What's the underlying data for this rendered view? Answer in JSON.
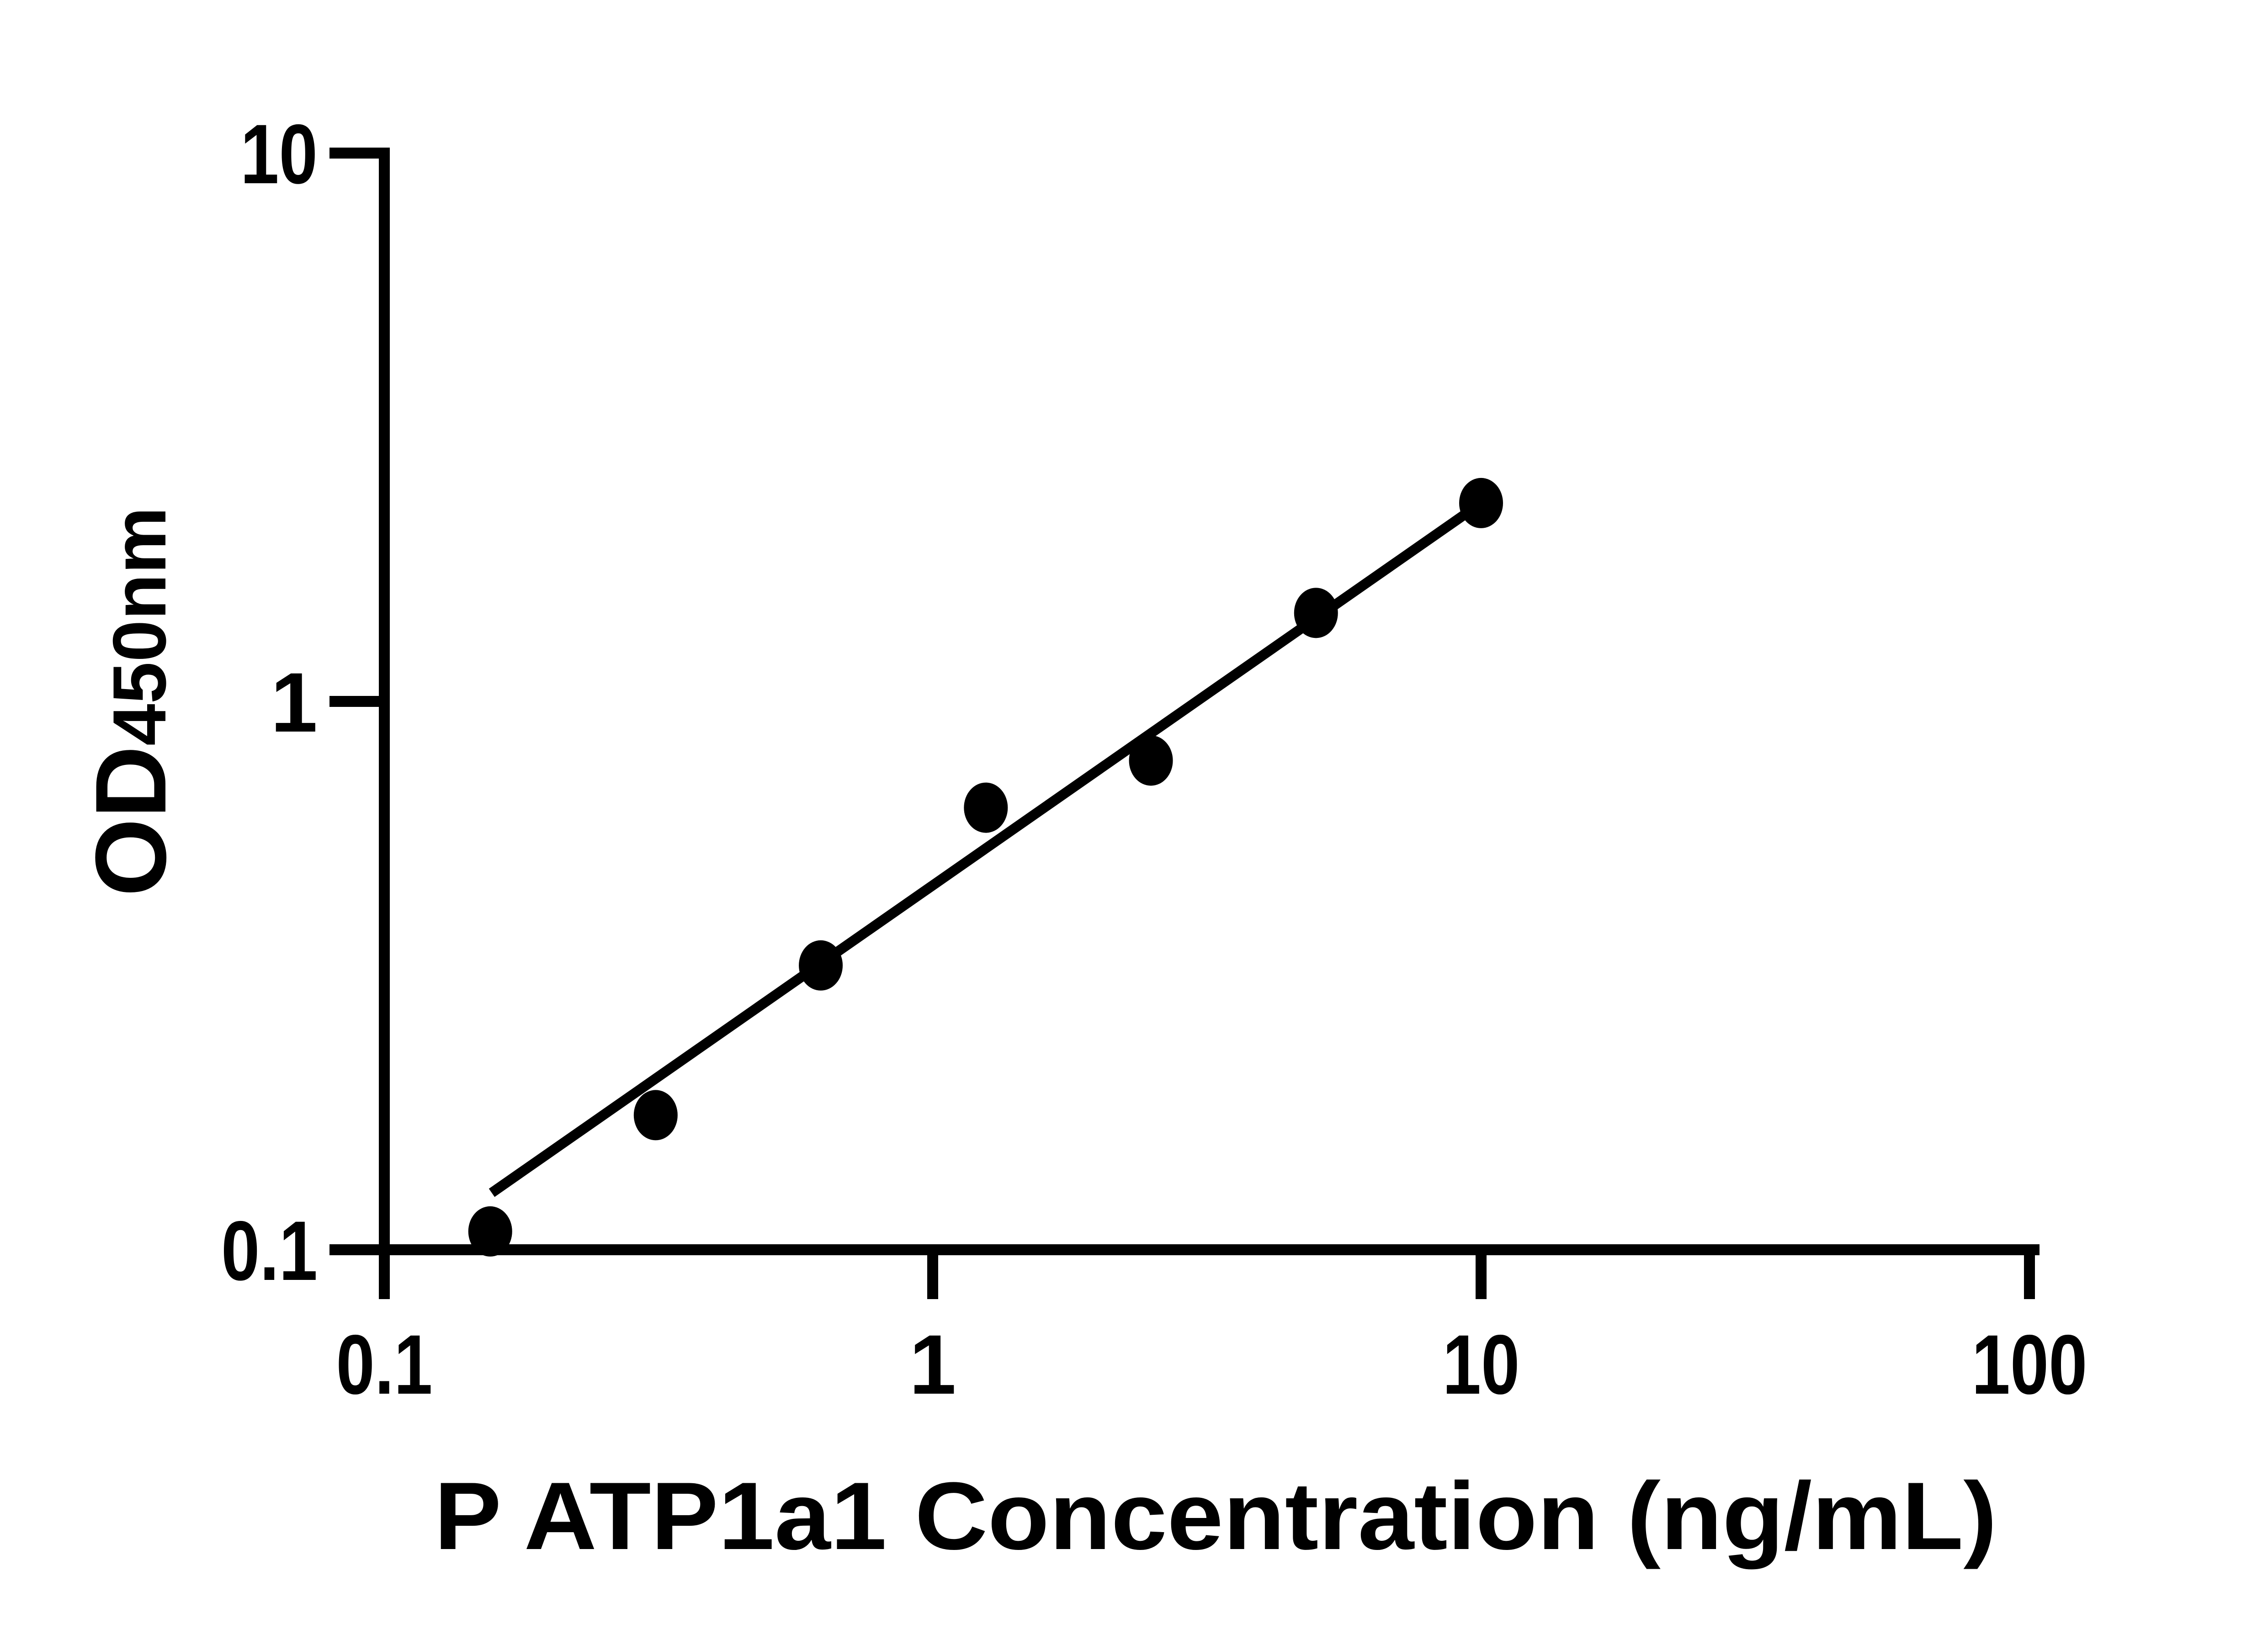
{
  "figure": {
    "background": "#ffffff"
  },
  "chart_data": {
    "type": "scatter",
    "title": "",
    "xlabel": "P ATP1a1 Concentration (ng/mL)",
    "ylabel": "OD450nm",
    "ylabel_main": "OD",
    "ylabel_sub": "450nm",
    "x_scale": "log",
    "y_scale": "log",
    "xlim": [
      0.1,
      100
    ],
    "ylim": [
      0.1,
      10
    ],
    "x_ticks": [
      "0.1",
      "1",
      "10",
      "100"
    ],
    "y_ticks": [
      "10",
      "1",
      "0.1"
    ],
    "grid": false,
    "legend": false,
    "marker": "filled-circle",
    "color": "#000000",
    "series": [
      {
        "points": [
          {
            "x": 0.156,
            "y": 0.108
          },
          {
            "x": 0.3125,
            "y": 0.176
          },
          {
            "x": 0.625,
            "y": 0.33
          },
          {
            "x": 1.25,
            "y": 0.64
          },
          {
            "x": 2.5,
            "y": 0.78
          },
          {
            "x": 5,
            "y": 1.45
          },
          {
            "x": 10,
            "y": 2.3
          }
        ]
      }
    ],
    "trend_line": {
      "x1": 0.157,
      "y1": 0.127,
      "x2": 10,
      "y2": 2.3
    }
  }
}
